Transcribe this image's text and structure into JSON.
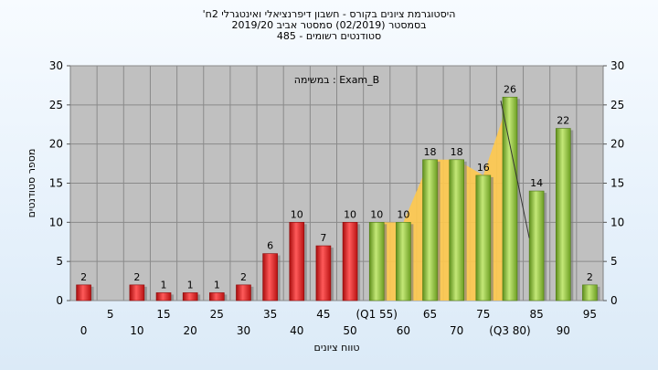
{
  "chart_data": {
    "type": "bar",
    "title_lines": [
      "'היסטוגרמת ציונים בקורס - חשבון דיפרנציאלי ואינטגרלי 2ח",
      "בסמסטר  (02/2019)  סמסטר אביב 2019/20",
      "485 - סטודנטים רשומים"
    ],
    "annotation": "במשימה : Exam_B",
    "xlabel": "טווח ציונים",
    "ylabel": "מספר סטודנטים",
    "ylim": [
      0,
      30
    ],
    "yticks": [
      0,
      5,
      10,
      15,
      20,
      25,
      30
    ],
    "grid": true,
    "x_lower_labels": [
      "0",
      "10",
      "20",
      "30",
      "40",
      "50",
      "60",
      "70",
      "(Q3 80)",
      "90"
    ],
    "x_upper_labels": [
      "5",
      "15",
      "25",
      "35",
      "45",
      "(Q1 55)",
      "65",
      "75",
      "85",
      "95"
    ],
    "categories": [
      "0",
      "5",
      "10",
      "15",
      "20",
      "25",
      "30",
      "35",
      "40",
      "45",
      "50",
      "55",
      "60",
      "65",
      "70",
      "75",
      "80",
      "85",
      "90",
      "95"
    ],
    "values": [
      2,
      0,
      2,
      1,
      1,
      1,
      2,
      6,
      10,
      7,
      10,
      10,
      10,
      18,
      18,
      16,
      26,
      14,
      22,
      2
    ],
    "value_labels": [
      "2",
      "",
      "2",
      "1",
      "1",
      "1",
      "2",
      "6",
      "10",
      "7",
      "10",
      "10",
      "10",
      "18",
      "18",
      "16",
      "26",
      "14",
      "22",
      "2"
    ],
    "bar_colors": [
      "#e02020",
      "#e02020",
      "#e02020",
      "#e02020",
      "#e02020",
      "#e02020",
      "#e02020",
      "#e02020",
      "#e02020",
      "#e02020",
      "#e02020",
      "#8fc23a",
      "#8fc23a",
      "#8fc23a",
      "#8fc23a",
      "#8fc23a",
      "#8fc23a",
      "#8fc23a",
      "#8fc23a",
      "#8fc23a"
    ],
    "iqr_area_color": "#ffc94d",
    "plot_background": "#c0c0c0"
  }
}
